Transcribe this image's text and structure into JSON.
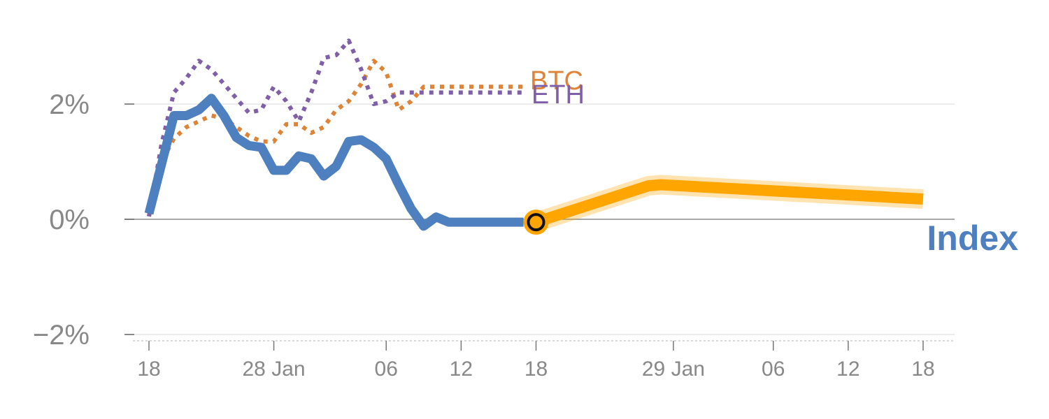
{
  "chart_data": {
    "type": "line",
    "title": "",
    "xlabel": "",
    "ylabel": "",
    "ylim": [
      -2,
      3.3
    ],
    "y_ticks": [
      {
        "value": 2,
        "label": "2%"
      },
      {
        "value": 0,
        "label": "0%"
      },
      {
        "value": -2,
        "label": "−2%"
      }
    ],
    "x_ticks": [
      {
        "day": 0,
        "label": "18"
      },
      {
        "day": 10,
        "label": "28 Jan"
      },
      {
        "day": 19,
        "label": "06"
      },
      {
        "day": 25,
        "label": "12"
      },
      {
        "day": 31,
        "label": "18"
      },
      {
        "day": 42,
        "label": "29 Jan"
      },
      {
        "day": 50,
        "label": "06"
      },
      {
        "day": 56,
        "label": "12"
      },
      {
        "day": 62,
        "label": "18"
      }
    ],
    "x_domain": [
      -1.5,
      66.5
    ],
    "series": [
      {
        "name": "Index",
        "label": "Index",
        "color": "#4e7fbf",
        "style": "solid",
        "x": [
          0,
          2,
          3,
          4,
          5,
          6,
          7,
          8,
          9,
          10,
          11,
          12,
          13,
          14,
          15,
          16,
          17,
          18,
          19,
          20,
          21,
          22,
          23,
          24,
          25,
          26,
          27,
          28,
          29,
          30
        ],
        "values": [
          0.1,
          1.8,
          1.8,
          1.9,
          2.1,
          1.8,
          1.42,
          1.28,
          1.25,
          0.85,
          0.85,
          1.1,
          1.05,
          0.75,
          0.92,
          1.35,
          1.38,
          1.25,
          1.05,
          0.6,
          0.18,
          -0.12,
          0.04,
          -0.05,
          -0.05,
          -0.05,
          -0.05,
          -0.05,
          -0.05,
          -0.05
        ]
      },
      {
        "name": "BTC",
        "label": "BTC",
        "color": "#dd8439",
        "style": "dotted",
        "x": [
          0,
          1,
          2,
          3,
          4,
          5,
          6,
          7,
          8,
          9,
          10,
          11,
          12,
          13,
          14,
          15,
          16,
          17,
          18,
          19,
          20,
          21,
          22,
          23,
          24,
          25,
          26,
          27,
          28,
          29,
          30
        ],
        "values": [
          0.05,
          1.0,
          1.4,
          1.6,
          1.7,
          1.8,
          1.75,
          1.6,
          1.45,
          1.35,
          1.35,
          1.65,
          1.65,
          1.5,
          1.6,
          1.9,
          2.05,
          2.35,
          2.75,
          2.55,
          1.9,
          2.05,
          2.3,
          2.3,
          2.3,
          2.3,
          2.3,
          2.3,
          2.3,
          2.3,
          2.3
        ]
      },
      {
        "name": "ETH",
        "label": "ETH",
        "color": "#7f5fa8",
        "style": "dotted",
        "x": [
          0,
          1,
          2,
          3,
          4,
          5,
          6,
          7,
          8,
          9,
          10,
          11,
          12,
          13,
          14,
          15,
          16,
          17,
          18,
          19,
          20,
          21,
          22,
          23,
          24,
          25,
          26,
          27,
          28,
          29,
          30
        ],
        "values": [
          0.05,
          1.3,
          2.2,
          2.45,
          2.75,
          2.6,
          2.35,
          2.1,
          1.85,
          1.9,
          2.3,
          2.05,
          1.7,
          2.2,
          2.8,
          2.85,
          3.1,
          2.6,
          2.0,
          2.05,
          2.2,
          2.2,
          2.2,
          2.2,
          2.2,
          2.2,
          2.2,
          2.2,
          2.2,
          2.2,
          2.2
        ]
      },
      {
        "name": "Projection",
        "label": "",
        "color": "#ffa500",
        "style": "highlight",
        "x": [
          31,
          40,
          41,
          62
        ],
        "values": [
          -0.05,
          0.58,
          0.6,
          0.35
        ]
      }
    ],
    "marker": {
      "x": 31,
      "value": -0.05,
      "fill": "#ffa500",
      "stroke": "#111111"
    }
  }
}
